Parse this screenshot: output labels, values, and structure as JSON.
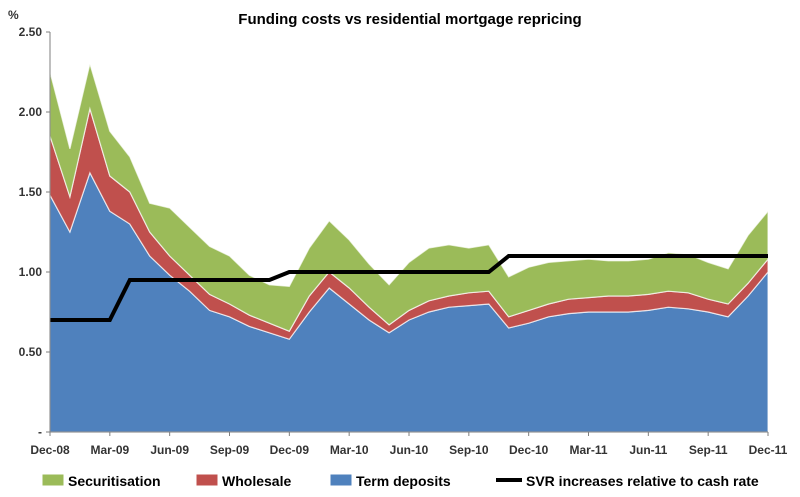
{
  "chart_data": {
    "type": "area",
    "title": "Funding costs vs residential mortgage repricing",
    "ylabel": "%",
    "ylim": [
      0,
      2.5
    ],
    "y_ticks": [
      {
        "value": 0,
        "label": "-"
      },
      {
        "value": 0.5,
        "label": "0.50"
      },
      {
        "value": 1.0,
        "label": "1.00"
      },
      {
        "value": 1.5,
        "label": "1.50"
      },
      {
        "value": 2.0,
        "label": "2.00"
      },
      {
        "value": 2.5,
        "label": "2.50"
      }
    ],
    "x_ticks": [
      "Dec-08",
      "Mar-09",
      "Jun-09",
      "Sep-09",
      "Dec-09",
      "Mar-10",
      "Jun-10",
      "Sep-10",
      "Dec-10",
      "Mar-11",
      "Jun-11",
      "Sep-11",
      "Dec-11"
    ],
    "x": [
      "Dec-08",
      "Jan-09",
      "Feb-09",
      "Mar-09",
      "Apr-09",
      "May-09",
      "Jun-09",
      "Jul-09",
      "Aug-09",
      "Sep-09",
      "Oct-09",
      "Nov-09",
      "Dec-09",
      "Jan-10",
      "Feb-10",
      "Mar-10",
      "Apr-10",
      "May-10",
      "Jun-10",
      "Jul-10",
      "Aug-10",
      "Sep-10",
      "Oct-10",
      "Nov-10",
      "Dec-10",
      "Jan-11",
      "Feb-11",
      "Mar-11",
      "Apr-11",
      "May-11",
      "Jun-11",
      "Jul-11",
      "Aug-11",
      "Sep-11",
      "Oct-11",
      "Nov-11",
      "Dec-11"
    ],
    "stack_series": [
      {
        "name": "Term deposits",
        "color": "#4f81bd",
        "values": [
          1.48,
          1.25,
          1.62,
          1.38,
          1.3,
          1.1,
          0.98,
          0.88,
          0.76,
          0.72,
          0.66,
          0.62,
          0.58,
          0.75,
          0.9,
          0.8,
          0.7,
          0.62,
          0.7,
          0.75,
          0.78,
          0.79,
          0.8,
          0.65,
          0.68,
          0.72,
          0.74,
          0.75,
          0.75,
          0.75,
          0.76,
          0.78,
          0.77,
          0.75,
          0.72,
          0.85,
          1.0
        ]
      },
      {
        "name": "Wholesale",
        "color": "#c0504d",
        "values": [
          0.37,
          0.22,
          0.4,
          0.22,
          0.2,
          0.15,
          0.12,
          0.1,
          0.1,
          0.08,
          0.07,
          0.06,
          0.05,
          0.1,
          0.1,
          0.1,
          0.08,
          0.05,
          0.06,
          0.07,
          0.07,
          0.08,
          0.08,
          0.07,
          0.08,
          0.08,
          0.09,
          0.09,
          0.1,
          0.1,
          0.1,
          0.1,
          0.1,
          0.08,
          0.08,
          0.08,
          0.08
        ]
      },
      {
        "name": "Securitisation",
        "color": "#9bbb59",
        "values": [
          0.4,
          0.3,
          0.28,
          0.28,
          0.22,
          0.18,
          0.3,
          0.3,
          0.3,
          0.3,
          0.25,
          0.24,
          0.28,
          0.3,
          0.32,
          0.3,
          0.27,
          0.25,
          0.3,
          0.33,
          0.32,
          0.28,
          0.29,
          0.25,
          0.27,
          0.26,
          0.24,
          0.24,
          0.22,
          0.22,
          0.22,
          0.24,
          0.24,
          0.23,
          0.22,
          0.3,
          0.3
        ]
      }
    ],
    "line_series": {
      "name": "SVR increases relative to cash rate",
      "color": "#000000",
      "steps": [
        {
          "x": "Dec-08",
          "y": 0.7
        },
        {
          "x": "Mar-09",
          "y": 0.7
        },
        {
          "x": "Apr-09",
          "y": 0.95
        },
        {
          "x": "Nov-09",
          "y": 0.95
        },
        {
          "x": "Dec-09",
          "y": 1.0
        },
        {
          "x": "Oct-10",
          "y": 1.0
        },
        {
          "x": "Nov-10",
          "y": 1.1
        },
        {
          "x": "Dec-11",
          "y": 1.1
        }
      ]
    },
    "legend": {
      "position": "bottom",
      "items": [
        "Securitisation",
        "Wholesale",
        "Term deposits",
        "SVR increases relative to cash rate"
      ]
    },
    "grid": false
  }
}
